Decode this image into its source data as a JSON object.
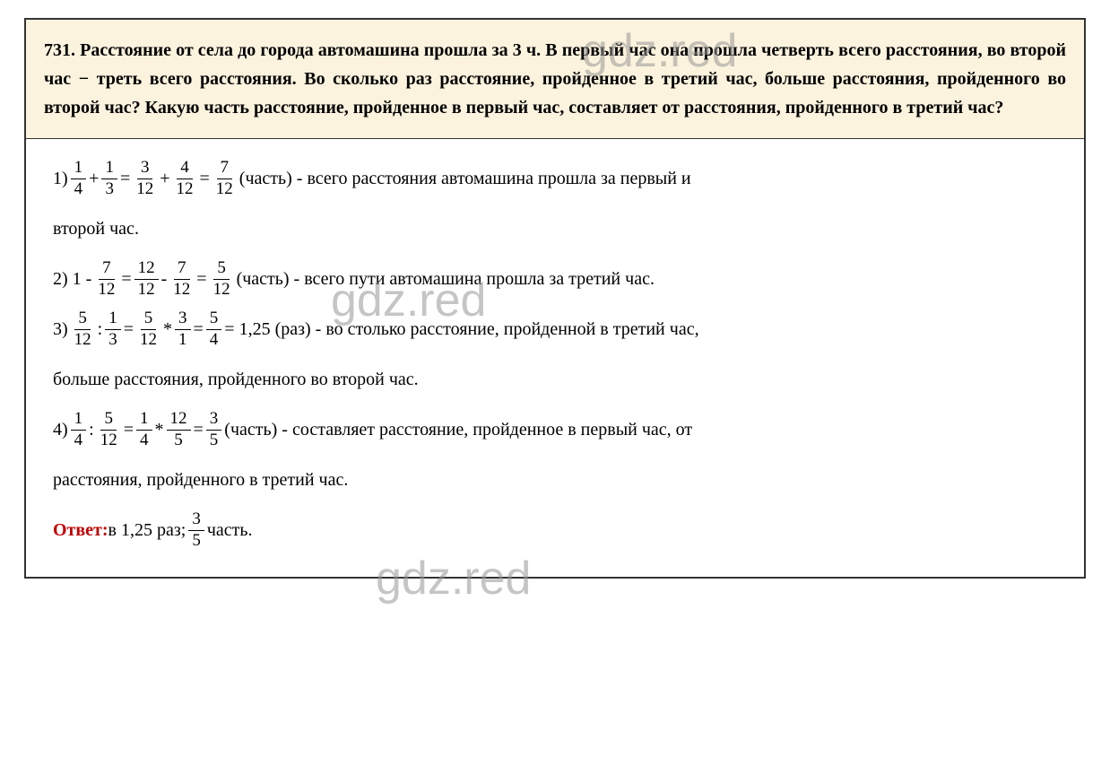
{
  "watermark": "gdz.red",
  "problem": {
    "number": "731.",
    "text": "Расстояние от села до города автомашина прошла за 3 ч. В первый час она прошла четверть всего расстояния, во второй час − треть всего расстояния. Во сколько раз расстояние, пройденное в третий час, больше расстояния, пройденного во второй час? Какую часть расстояние, пройденное в первый час, составляет от расстояния, пройденного в третий час?",
    "problem_bg": "#fcf3de",
    "problem_color": "#000000",
    "font_size": 20
  },
  "solution": {
    "step1": {
      "label": "1) ",
      "f1": {
        "n": "1",
        "d": "4"
      },
      "op1": "+",
      "f2": {
        "n": "1",
        "d": "3"
      },
      "eq1": "=",
      "f3": {
        "n": "3",
        "d": "12"
      },
      "op2": "+",
      "f4": {
        "n": "4",
        "d": "12"
      },
      "eq2": "=",
      "f5": {
        "n": "7",
        "d": "12"
      },
      "tail": "(часть) - всего расстояния автомашина прошла за первый и",
      "cont": "второй час."
    },
    "step2": {
      "label": "2) 1 -",
      "f1": {
        "n": "7",
        "d": "12"
      },
      "eq1": "=",
      "f2": {
        "n": "12",
        "d": "12"
      },
      "op1": "-",
      "f3": {
        "n": "7",
        "d": "12"
      },
      "eq2": "=",
      "f4": {
        "n": "5",
        "d": "12"
      },
      "tail": "(часть) - всего пути автомашина прошла за третий час."
    },
    "step3": {
      "label": "3) ",
      "f1": {
        "n": "5",
        "d": "12"
      },
      "op1": ":",
      "f2": {
        "n": "1",
        "d": "3"
      },
      "eq1": "=",
      "f3": {
        "n": "5",
        "d": "12"
      },
      "op2": "*",
      "f4": {
        "n": "3",
        "d": "1"
      },
      "eq2": "=",
      "f5": {
        "n": "5",
        "d": "4"
      },
      "tail": "= 1,25 (раз) - во столько расстояние, пройденной в третий час,",
      "cont": "больше расстояния, пройденного во второй час."
    },
    "step4": {
      "label": "4) ",
      "f1": {
        "n": "1",
        "d": "4"
      },
      "op1": ":",
      "f2": {
        "n": "5",
        "d": "12"
      },
      "eq1": "=",
      "f3": {
        "n": "1",
        "d": "4"
      },
      "op2": "*",
      "f4": {
        "n": "12",
        "d": "5"
      },
      "eq2": "=",
      "f5": {
        "n": "3",
        "d": "5"
      },
      "tail": "(часть) - составляет расстояние, пройденное в первый час, от",
      "cont": "расстояния, пройденного в третий час."
    },
    "answer": {
      "label": "Ответ:",
      "text_before": " в 1,25 раз;  ",
      "f": {
        "n": "3",
        "d": "5"
      },
      "text_after": "часть.",
      "label_color": "#c00000"
    }
  }
}
